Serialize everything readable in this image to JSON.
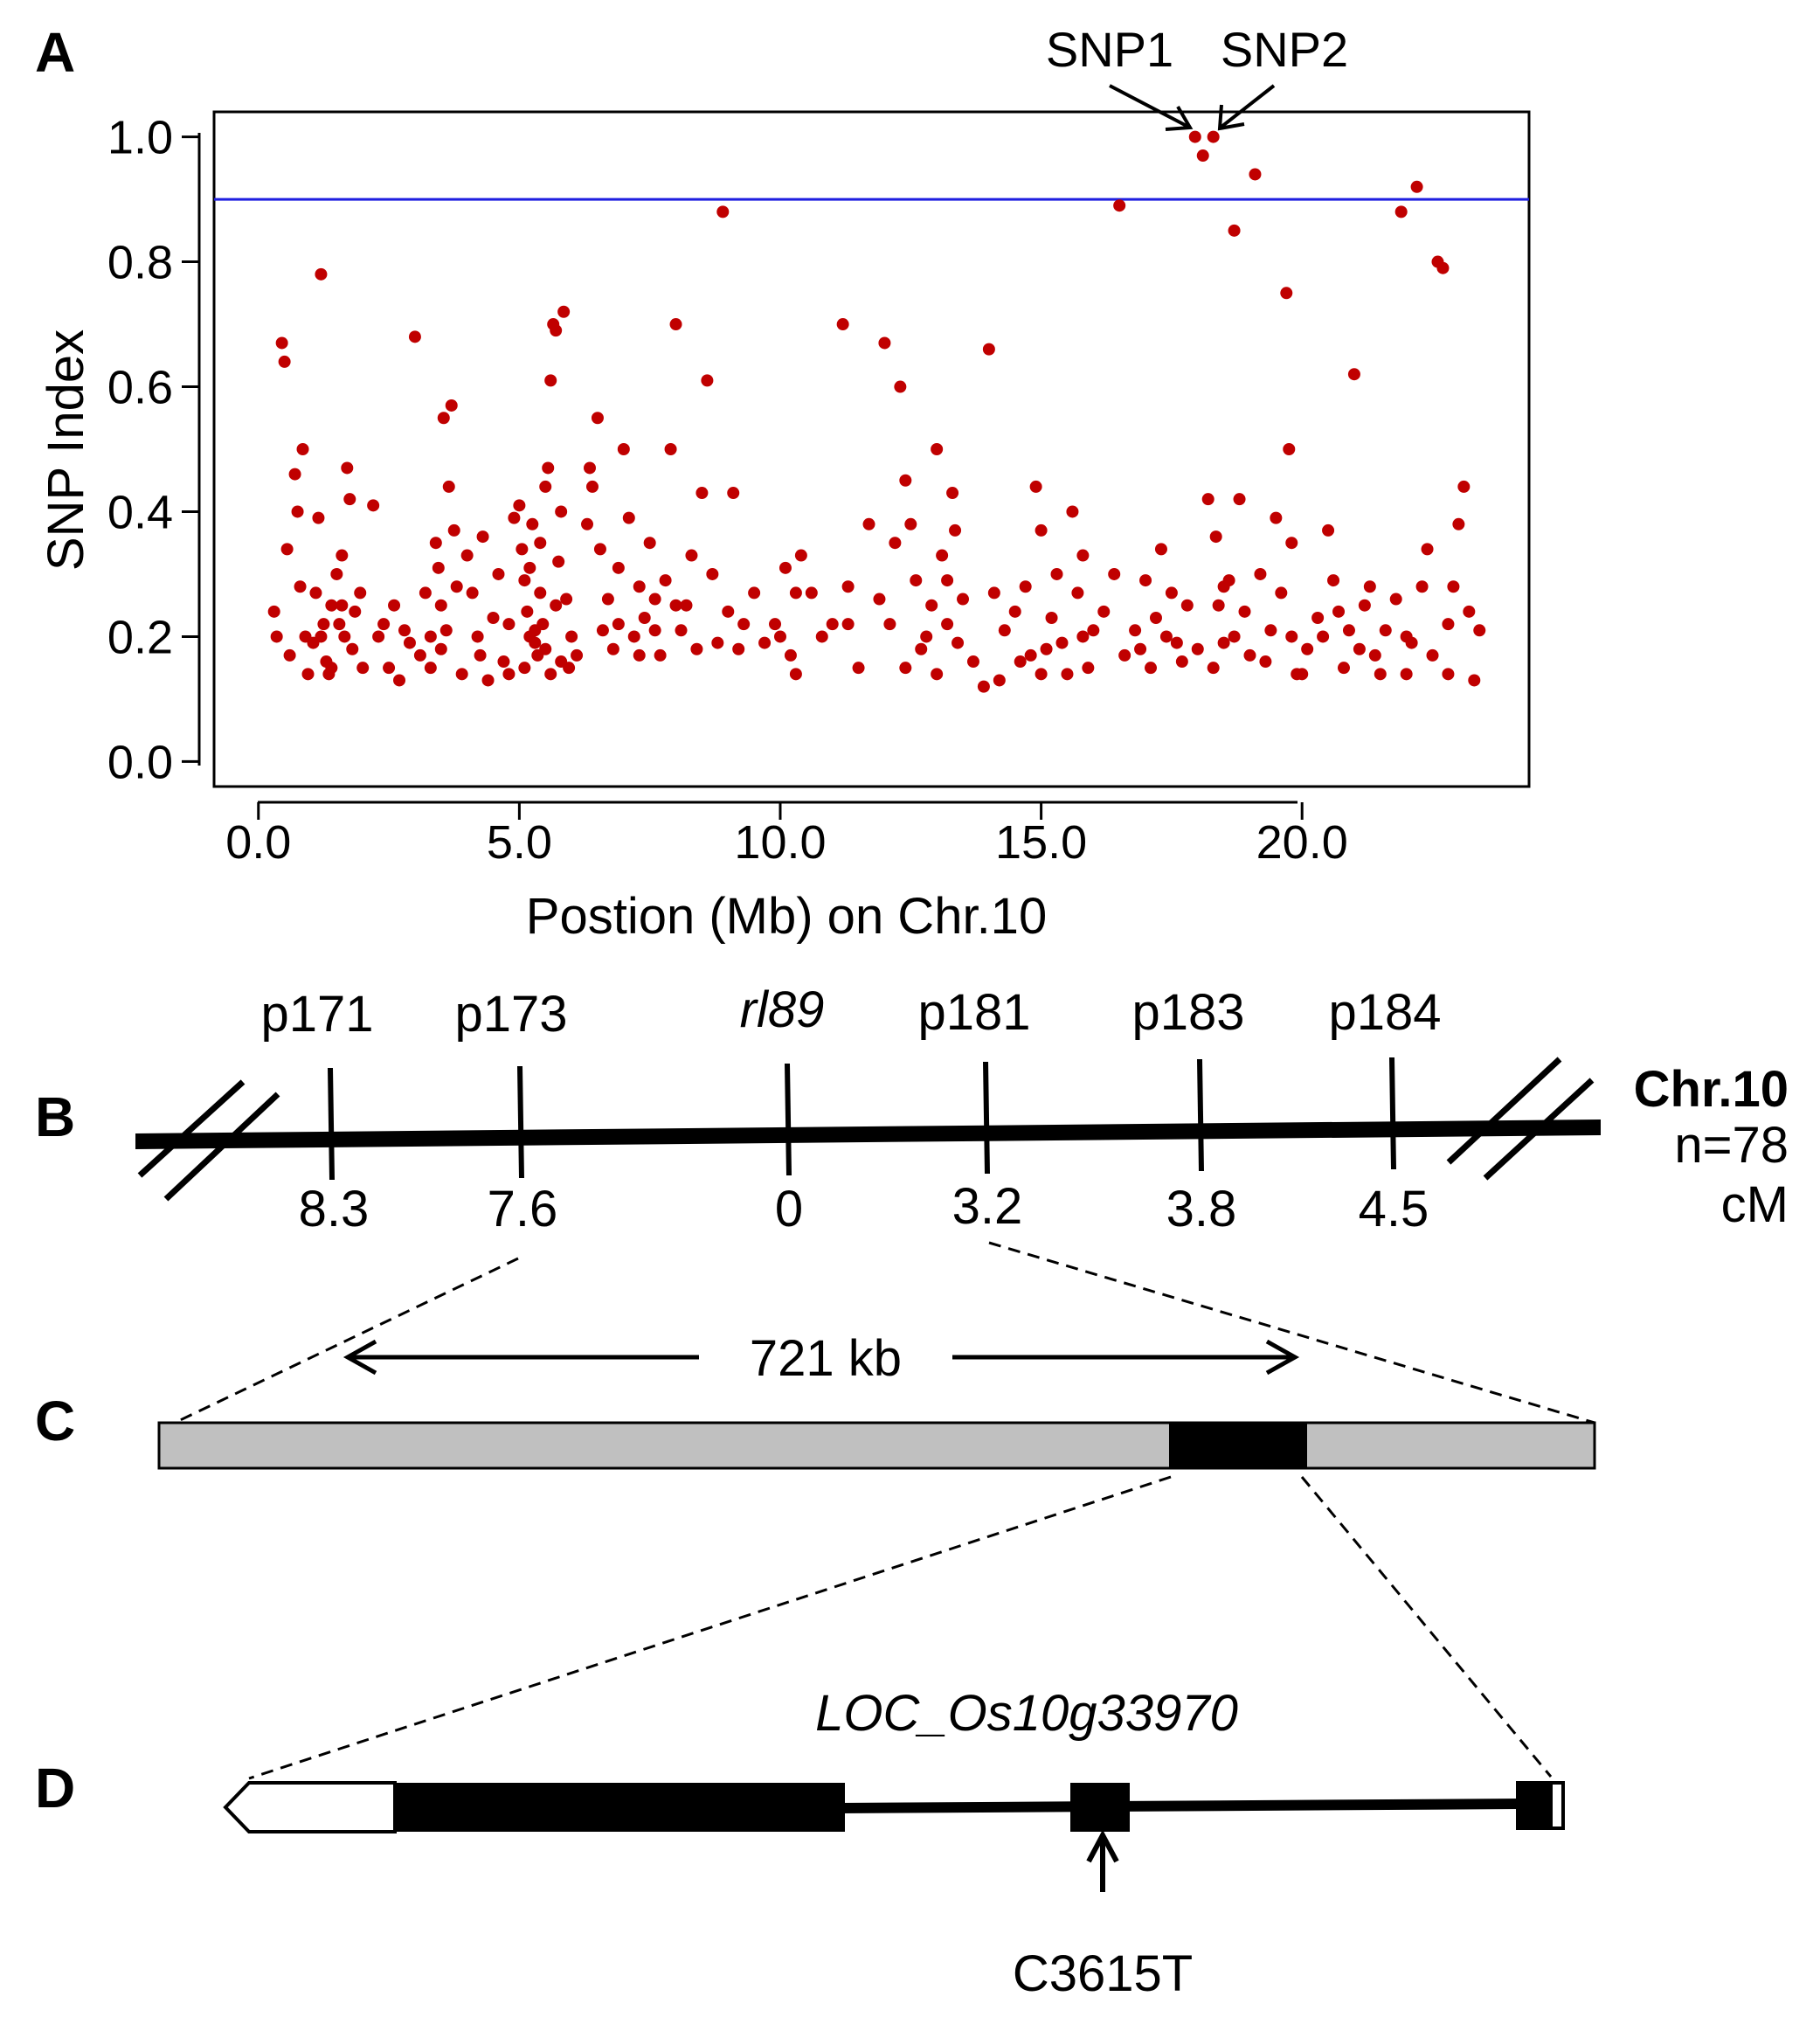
{
  "panels": {
    "a": "A",
    "b": "B",
    "c": "C",
    "d": "D"
  },
  "chart_data": {
    "type": "scatter",
    "xlabel": "Postion (Mb) on Chr.10",
    "ylabel": "SNP Index",
    "xlim": [
      -0.85,
      24.35
    ],
    "ylim": [
      -0.04,
      1.04
    ],
    "xticks": [
      "0.0",
      "5.0",
      "10.0",
      "15.0",
      "20.0"
    ],
    "yticks": [
      "0.0",
      "0.2",
      "0.4",
      "0.6",
      "0.8",
      "1.0"
    ],
    "threshold": 0.9,
    "threshold_color": "#1f1fe0",
    "point_color": "#c00000",
    "grid": false,
    "annotations": [
      {
        "label": "SNP1",
        "x": 17.95,
        "y": 1.0
      },
      {
        "label": "SNP2",
        "x": 18.3,
        "y": 1.0
      }
    ],
    "points": [
      [
        0.3,
        0.24
      ],
      [
        0.35,
        0.2
      ],
      [
        0.45,
        0.67
      ],
      [
        0.5,
        0.64
      ],
      [
        0.55,
        0.34
      ],
      [
        0.6,
        0.17
      ],
      [
        0.7,
        0.46
      ],
      [
        0.75,
        0.4
      ],
      [
        0.8,
        0.28
      ],
      [
        0.85,
        0.5
      ],
      [
        0.9,
        0.2
      ],
      [
        0.95,
        0.14
      ],
      [
        1.05,
        0.19
      ],
      [
        1.1,
        0.27
      ],
      [
        1.15,
        0.39
      ],
      [
        1.2,
        0.78
      ],
      [
        1.25,
        0.22
      ],
      [
        1.3,
        0.16
      ],
      [
        1.35,
        0.14
      ],
      [
        1.4,
        0.25
      ],
      [
        1.5,
        0.3
      ],
      [
        1.55,
        0.22
      ],
      [
        1.6,
        0.33
      ],
      [
        1.65,
        0.2
      ],
      [
        1.7,
        0.47
      ],
      [
        1.75,
        0.42
      ],
      [
        1.8,
        0.18
      ],
      [
        1.85,
        0.24
      ],
      [
        1.95,
        0.27
      ],
      [
        2.0,
        0.15
      ],
      [
        2.2,
        0.41
      ],
      [
        2.3,
        0.2
      ],
      [
        2.5,
        0.15
      ],
      [
        2.6,
        0.25
      ],
      [
        2.7,
        0.13
      ],
      [
        2.8,
        0.21
      ],
      [
        2.9,
        0.19
      ],
      [
        3.0,
        0.68
      ],
      [
        3.1,
        0.17
      ],
      [
        3.2,
        0.27
      ],
      [
        3.3,
        0.15
      ],
      [
        3.4,
        0.35
      ],
      [
        3.45,
        0.31
      ],
      [
        3.5,
        0.25
      ],
      [
        3.55,
        0.55
      ],
      [
        3.6,
        0.21
      ],
      [
        3.65,
        0.44
      ],
      [
        3.7,
        0.57
      ],
      [
        3.75,
        0.37
      ],
      [
        3.8,
        0.28
      ],
      [
        3.9,
        0.14
      ],
      [
        4.0,
        0.33
      ],
      [
        4.1,
        0.27
      ],
      [
        4.2,
        0.2
      ],
      [
        4.25,
        0.17
      ],
      [
        4.3,
        0.36
      ],
      [
        4.4,
        0.13
      ],
      [
        4.5,
        0.23
      ],
      [
        4.6,
        0.3
      ],
      [
        4.7,
        0.16
      ],
      [
        4.8,
        0.22
      ],
      [
        4.9,
        0.39
      ],
      [
        5.0,
        0.41
      ],
      [
        5.05,
        0.34
      ],
      [
        5.1,
        0.29
      ],
      [
        5.15,
        0.24
      ],
      [
        5.2,
        0.31
      ],
      [
        5.25,
        0.38
      ],
      [
        5.3,
        0.19
      ],
      [
        5.35,
        0.17
      ],
      [
        5.4,
        0.27
      ],
      [
        5.45,
        0.22
      ],
      [
        5.5,
        0.44
      ],
      [
        5.55,
        0.47
      ],
      [
        5.6,
        0.61
      ],
      [
        5.65,
        0.7
      ],
      [
        5.7,
        0.69
      ],
      [
        5.75,
        0.32
      ],
      [
        5.8,
        0.4
      ],
      [
        5.85,
        0.72
      ],
      [
        5.9,
        0.26
      ],
      [
        5.95,
        0.15
      ],
      [
        6.0,
        0.2
      ],
      [
        6.1,
        0.17
      ],
      [
        6.3,
        0.38
      ],
      [
        6.35,
        0.47
      ],
      [
        6.4,
        0.44
      ],
      [
        6.5,
        0.55
      ],
      [
        6.55,
        0.34
      ],
      [
        6.6,
        0.21
      ],
      [
        6.7,
        0.26
      ],
      [
        6.8,
        0.18
      ],
      [
        6.9,
        0.31
      ],
      [
        7.0,
        0.5
      ],
      [
        7.1,
        0.39
      ],
      [
        7.2,
        0.2
      ],
      [
        7.3,
        0.28
      ],
      [
        7.4,
        0.23
      ],
      [
        7.5,
        0.35
      ],
      [
        7.6,
        0.26
      ],
      [
        7.7,
        0.17
      ],
      [
        7.8,
        0.29
      ],
      [
        7.9,
        0.5
      ],
      [
        8.0,
        0.7
      ],
      [
        8.1,
        0.21
      ],
      [
        8.2,
        0.25
      ],
      [
        8.3,
        0.33
      ],
      [
        8.4,
        0.18
      ],
      [
        8.5,
        0.43
      ],
      [
        8.6,
        0.61
      ],
      [
        8.7,
        0.3
      ],
      [
        8.8,
        0.19
      ],
      [
        8.9,
        0.88
      ],
      [
        9.0,
        0.24
      ],
      [
        9.1,
        0.43
      ],
      [
        9.3,
        0.22
      ],
      [
        9.5,
        0.27
      ],
      [
        9.7,
        0.19
      ],
      [
        9.9,
        0.22
      ],
      [
        10.1,
        0.31
      ],
      [
        10.2,
        0.17
      ],
      [
        10.3,
        0.27
      ],
      [
        10.4,
        0.33
      ],
      [
        10.6,
        0.27
      ],
      [
        10.8,
        0.2
      ],
      [
        11.0,
        0.22
      ],
      [
        11.2,
        0.7
      ],
      [
        11.3,
        0.28
      ],
      [
        11.5,
        0.15
      ],
      [
        11.7,
        0.38
      ],
      [
        11.9,
        0.26
      ],
      [
        12.0,
        0.67
      ],
      [
        12.1,
        0.22
      ],
      [
        12.2,
        0.35
      ],
      [
        12.3,
        0.6
      ],
      [
        12.4,
        0.45
      ],
      [
        12.5,
        0.38
      ],
      [
        12.6,
        0.29
      ],
      [
        12.7,
        0.18
      ],
      [
        12.9,
        0.25
      ],
      [
        13.0,
        0.5
      ],
      [
        13.1,
        0.33
      ],
      [
        13.2,
        0.29
      ],
      [
        13.3,
        0.43
      ],
      [
        13.35,
        0.37
      ],
      [
        13.4,
        0.19
      ],
      [
        13.5,
        0.26
      ],
      [
        13.7,
        0.16
      ],
      [
        13.9,
        0.12
      ],
      [
        14.0,
        0.66
      ],
      [
        14.1,
        0.27
      ],
      [
        14.3,
        0.21
      ],
      [
        14.5,
        0.24
      ],
      [
        14.7,
        0.28
      ],
      [
        14.8,
        0.17
      ],
      [
        14.9,
        0.44
      ],
      [
        15.0,
        0.37
      ],
      [
        15.1,
        0.18
      ],
      [
        15.2,
        0.23
      ],
      [
        15.3,
        0.3
      ],
      [
        15.4,
        0.19
      ],
      [
        15.6,
        0.4
      ],
      [
        15.7,
        0.27
      ],
      [
        15.8,
        0.33
      ],
      [
        15.9,
        0.15
      ],
      [
        16.0,
        0.21
      ],
      [
        16.2,
        0.24
      ],
      [
        16.4,
        0.3
      ],
      [
        16.5,
        0.89
      ],
      [
        16.6,
        0.17
      ],
      [
        16.8,
        0.21
      ],
      [
        17.0,
        0.29
      ],
      [
        17.1,
        0.15
      ],
      [
        17.2,
        0.23
      ],
      [
        17.3,
        0.34
      ],
      [
        17.5,
        0.27
      ],
      [
        17.6,
        0.19
      ],
      [
        17.8,
        0.25
      ],
      [
        17.95,
        1.0
      ],
      [
        18.1,
        0.97
      ],
      [
        18.2,
        0.42
      ],
      [
        18.3,
        1.0
      ],
      [
        18.35,
        0.36
      ],
      [
        18.4,
        0.25
      ],
      [
        18.5,
        0.19
      ],
      [
        18.6,
        0.29
      ],
      [
        18.7,
        0.85
      ],
      [
        18.8,
        0.42
      ],
      [
        18.9,
        0.24
      ],
      [
        19.0,
        0.17
      ],
      [
        19.1,
        0.94
      ],
      [
        19.2,
        0.3
      ],
      [
        19.4,
        0.21
      ],
      [
        19.5,
        0.39
      ],
      [
        19.6,
        0.27
      ],
      [
        19.7,
        0.75
      ],
      [
        19.75,
        0.5
      ],
      [
        19.8,
        0.35
      ],
      [
        19.9,
        0.14
      ],
      [
        20.1,
        0.18
      ],
      [
        20.3,
        0.23
      ],
      [
        20.5,
        0.37
      ],
      [
        20.6,
        0.29
      ],
      [
        20.7,
        0.24
      ],
      [
        20.8,
        0.15
      ],
      [
        20.9,
        0.21
      ],
      [
        21.0,
        0.62
      ],
      [
        21.2,
        0.25
      ],
      [
        21.3,
        0.28
      ],
      [
        21.4,
        0.17
      ],
      [
        21.6,
        0.21
      ],
      [
        21.8,
        0.26
      ],
      [
        21.9,
        0.88
      ],
      [
        22.0,
        0.2
      ],
      [
        22.1,
        0.19
      ],
      [
        22.2,
        0.92
      ],
      [
        22.3,
        0.28
      ],
      [
        22.4,
        0.34
      ],
      [
        22.5,
        0.17
      ],
      [
        22.6,
        0.8
      ],
      [
        22.7,
        0.79
      ],
      [
        22.8,
        0.14
      ],
      [
        22.9,
        0.28
      ],
      [
        23.0,
        0.38
      ],
      [
        23.1,
        0.44
      ],
      [
        23.2,
        0.24
      ],
      [
        23.3,
        0.13
      ],
      [
        23.4,
        0.21
      ],
      [
        1.2,
        0.2
      ],
      [
        1.4,
        0.15
      ],
      [
        1.6,
        0.25
      ],
      [
        2.4,
        0.22
      ],
      [
        3.3,
        0.2
      ],
      [
        3.5,
        0.18
      ],
      [
        4.8,
        0.14
      ],
      [
        5.1,
        0.15
      ],
      [
        5.2,
        0.2
      ],
      [
        5.3,
        0.21
      ],
      [
        5.4,
        0.35
      ],
      [
        5.5,
        0.18
      ],
      [
        5.6,
        0.14
      ],
      [
        5.7,
        0.25
      ],
      [
        5.8,
        0.16
      ],
      [
        6.9,
        0.22
      ],
      [
        7.3,
        0.17
      ],
      [
        7.6,
        0.21
      ],
      [
        8.0,
        0.25
      ],
      [
        9.2,
        0.18
      ],
      [
        10.0,
        0.2
      ],
      [
        10.3,
        0.14
      ],
      [
        11.3,
        0.22
      ],
      [
        12.4,
        0.15
      ],
      [
        12.8,
        0.2
      ],
      [
        13.0,
        0.14
      ],
      [
        13.2,
        0.22
      ],
      [
        14.2,
        0.13
      ],
      [
        14.6,
        0.16
      ],
      [
        15.0,
        0.14
      ],
      [
        15.5,
        0.14
      ],
      [
        15.8,
        0.2
      ],
      [
        16.9,
        0.18
      ],
      [
        17.4,
        0.2
      ],
      [
        17.7,
        0.16
      ],
      [
        18.0,
        0.18
      ],
      [
        18.3,
        0.15
      ],
      [
        18.5,
        0.28
      ],
      [
        18.7,
        0.2
      ],
      [
        19.3,
        0.16
      ],
      [
        19.8,
        0.2
      ],
      [
        20.0,
        0.14
      ],
      [
        20.4,
        0.2
      ],
      [
        21.1,
        0.18
      ],
      [
        21.5,
        0.14
      ],
      [
        22.0,
        0.14
      ],
      [
        22.8,
        0.22
      ]
    ]
  },
  "linkage_map": {
    "chromosome": "Chr.10",
    "population": "n=78",
    "unit": "cM",
    "markers": [
      {
        "name": "p171",
        "distance": "8.3"
      },
      {
        "name": "p173",
        "distance": "7.6"
      },
      {
        "name": "rl89",
        "distance": "0",
        "italic": true
      },
      {
        "name": "p181",
        "distance": "3.2"
      },
      {
        "name": "p183",
        "distance": "3.8"
      },
      {
        "name": "p184",
        "distance": "4.5"
      }
    ]
  },
  "interval": {
    "label": "721 kb"
  },
  "gene": {
    "name": "LOC_Os10g33970",
    "mutation": "C3615T"
  }
}
